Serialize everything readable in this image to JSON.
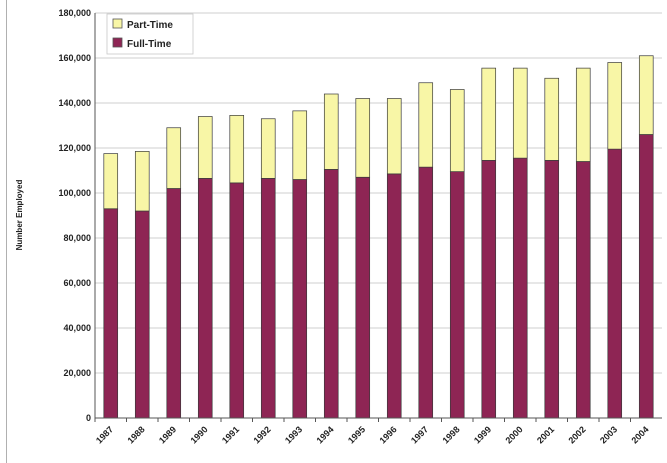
{
  "chart_data": {
    "type": "bar",
    "stacked": true,
    "title": "",
    "xlabel": "",
    "ylabel": "Number Employed",
    "ylim": [
      0,
      180000
    ],
    "yticks": [
      0,
      20000,
      40000,
      60000,
      80000,
      100000,
      120000,
      140000,
      160000,
      180000
    ],
    "ytick_labels": [
      "0",
      "20,000",
      "40,000",
      "60,000",
      "80,000",
      "100,000",
      "120,000",
      "140,000",
      "160,000",
      "180,000"
    ],
    "grid": true,
    "legend_position": "top-left",
    "categories": [
      "1987",
      "1988",
      "1989",
      "1990",
      "1991",
      "1992",
      "1993",
      "1994",
      "1995",
      "1996",
      "1997",
      "1998",
      "1999",
      "2000",
      "2001",
      "2002",
      "2003",
      "2004"
    ],
    "series": [
      {
        "name": "Full-Time",
        "color": "#8e2554",
        "values": [
          93000,
          92000,
          102000,
          106500,
          104500,
          106500,
          106000,
          110500,
          107000,
          108500,
          111500,
          109500,
          114500,
          115500,
          114500,
          114000,
          119500,
          126000
        ]
      },
      {
        "name": "Part-Time",
        "color": "#f8f6a6",
        "values": [
          24500,
          26500,
          27000,
          27500,
          30000,
          26500,
          30500,
          33500,
          35000,
          33500,
          37500,
          36500,
          41000,
          40000,
          36500,
          41500,
          38500,
          35000
        ]
      }
    ],
    "legend": [
      "Part-Time",
      "Full-Time"
    ]
  }
}
